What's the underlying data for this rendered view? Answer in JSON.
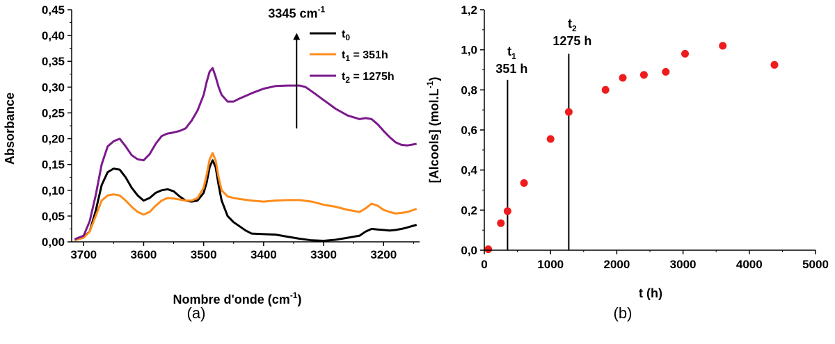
{
  "chart_data": [
    {
      "type": "line",
      "panel": "(a)",
      "xlabel": "Nombre d'onde (cm",
      "xlabel_sup": "-1",
      "xlabel_end": ")",
      "ylabel": "Absorbance",
      "xlim": [
        3720,
        3140
      ],
      "ylim": [
        0,
        0.45
      ],
      "x_ticks": [
        3700,
        3600,
        3500,
        3400,
        3300,
        3200
      ],
      "y_ticks": [
        "0,00",
        "0,05",
        "0,10",
        "0,15",
        "0,20",
        "0,25",
        "0,30",
        "0,35",
        "0,40",
        "0,45"
      ],
      "annotation": {
        "text": "3345 cm",
        "sup": "-1",
        "x": 3345,
        "y_from": 0.22,
        "y_to": 0.405
      },
      "series": [
        {
          "name_main": "t",
          "name_sub": "0",
          "name_rest": "",
          "color": "#000000",
          "x": [
            3715,
            3700,
            3690,
            3680,
            3670,
            3660,
            3650,
            3640,
            3630,
            3620,
            3610,
            3600,
            3590,
            3580,
            3570,
            3560,
            3550,
            3540,
            3530,
            3520,
            3510,
            3500,
            3495,
            3490,
            3485,
            3480,
            3475,
            3470,
            3460,
            3450,
            3440,
            3430,
            3420,
            3400,
            3380,
            3360,
            3340,
            3320,
            3300,
            3280,
            3260,
            3240,
            3230,
            3220,
            3210,
            3200,
            3190,
            3180,
            3170,
            3160,
            3145
          ],
          "y": [
            0.003,
            0.01,
            0.02,
            0.06,
            0.11,
            0.135,
            0.142,
            0.14,
            0.125,
            0.105,
            0.09,
            0.08,
            0.085,
            0.095,
            0.1,
            0.102,
            0.098,
            0.088,
            0.08,
            0.078,
            0.08,
            0.095,
            0.115,
            0.145,
            0.158,
            0.145,
            0.11,
            0.08,
            0.05,
            0.038,
            0.03,
            0.022,
            0.016,
            0.015,
            0.014,
            0.01,
            0.006,
            0.003,
            0.002,
            0.004,
            0.008,
            0.012,
            0.02,
            0.025,
            0.024,
            0.023,
            0.022,
            0.023,
            0.025,
            0.028,
            0.033
          ]
        },
        {
          "name_main": "t",
          "name_sub": "1",
          "name_rest": " = 351h",
          "color": "#ff8c1a",
          "x": [
            3715,
            3700,
            3690,
            3680,
            3670,
            3660,
            3650,
            3640,
            3630,
            3620,
            3610,
            3600,
            3590,
            3580,
            3570,
            3560,
            3550,
            3540,
            3530,
            3520,
            3510,
            3500,
            3495,
            3490,
            3485,
            3480,
            3475,
            3470,
            3460,
            3450,
            3440,
            3420,
            3400,
            3380,
            3360,
            3340,
            3320,
            3300,
            3280,
            3260,
            3240,
            3230,
            3220,
            3210,
            3200,
            3190,
            3180,
            3170,
            3160,
            3145
          ],
          "y": [
            0.003,
            0.008,
            0.02,
            0.05,
            0.08,
            0.09,
            0.092,
            0.09,
            0.08,
            0.068,
            0.058,
            0.053,
            0.058,
            0.07,
            0.08,
            0.085,
            0.084,
            0.082,
            0.08,
            0.08,
            0.085,
            0.105,
            0.13,
            0.16,
            0.172,
            0.158,
            0.125,
            0.1,
            0.088,
            0.085,
            0.083,
            0.08,
            0.078,
            0.08,
            0.081,
            0.081,
            0.078,
            0.072,
            0.068,
            0.062,
            0.058,
            0.065,
            0.074,
            0.07,
            0.062,
            0.058,
            0.055,
            0.056,
            0.058,
            0.064
          ]
        },
        {
          "name_main": "t",
          "name_sub": "2",
          "name_rest": " = 1275h",
          "color": "#7b1a8c",
          "x": [
            3715,
            3700,
            3690,
            3680,
            3670,
            3660,
            3650,
            3640,
            3630,
            3620,
            3610,
            3600,
            3590,
            3580,
            3570,
            3560,
            3550,
            3540,
            3530,
            3520,
            3510,
            3500,
            3495,
            3490,
            3485,
            3480,
            3475,
            3470,
            3460,
            3450,
            3440,
            3420,
            3400,
            3380,
            3360,
            3340,
            3330,
            3320,
            3300,
            3280,
            3260,
            3240,
            3230,
            3220,
            3210,
            3200,
            3190,
            3180,
            3170,
            3160,
            3145
          ],
          "y": [
            0.005,
            0.012,
            0.04,
            0.09,
            0.15,
            0.185,
            0.195,
            0.2,
            0.185,
            0.168,
            0.16,
            0.158,
            0.17,
            0.19,
            0.205,
            0.21,
            0.212,
            0.215,
            0.22,
            0.235,
            0.255,
            0.285,
            0.31,
            0.33,
            0.337,
            0.32,
            0.3,
            0.285,
            0.272,
            0.272,
            0.278,
            0.288,
            0.297,
            0.302,
            0.303,
            0.303,
            0.3,
            0.292,
            0.275,
            0.258,
            0.245,
            0.238,
            0.24,
            0.238,
            0.228,
            0.215,
            0.203,
            0.193,
            0.188,
            0.187,
            0.19
          ]
        }
      ]
    },
    {
      "type": "scatter",
      "panel": "(b)",
      "xlabel": "t (h)",
      "ylabel": "[Alcools] (mol.L",
      "ylabel_sup": "-1",
      "ylabel_end": ")",
      "xlim": [
        0,
        5000
      ],
      "ylim": [
        0,
        1.2
      ],
      "x_ticks": [
        "0",
        "1000",
        "2000",
        "3000",
        "4000",
        "5000"
      ],
      "y_ticks": [
        "0,0",
        "0,2",
        "0,4",
        "0,6",
        "0,8",
        "1,0",
        "1,2"
      ],
      "marker_color": "#ee1c1c",
      "points": {
        "x": [
          60,
          250,
          351,
          600,
          1000,
          1275,
          1830,
          2090,
          2410,
          2740,
          3030,
          3600,
          4380
        ],
        "y": [
          0.005,
          0.135,
          0.195,
          0.335,
          0.555,
          0.69,
          0.8,
          0.86,
          0.875,
          0.89,
          0.98,
          1.02,
          0.925
        ]
      },
      "vlines": [
        {
          "x": 351,
          "label_main": "t",
          "label_sub": "1",
          "label_value": "351 h"
        },
        {
          "x": 1275,
          "label_main": "t",
          "label_sub": "2",
          "label_value": "1275 h"
        }
      ]
    }
  ]
}
